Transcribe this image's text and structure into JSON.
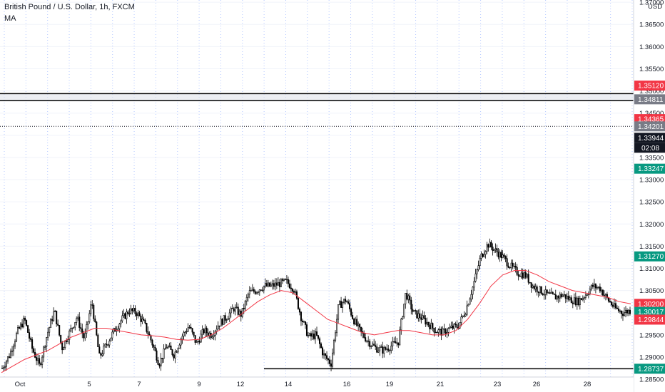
{
  "header": {
    "symbol_line": "British Pound / U.S. Dollar, 1h, FXCM",
    "indicator": "MA"
  },
  "axis": {
    "currency": "USD",
    "countdown": "02:08"
  },
  "colors": {
    "candle": "#000000",
    "ma": "#f23645",
    "grid_vertical": "#2962ff",
    "tag_red": "#f23645",
    "tag_green": "#089981",
    "tag_gray": "#787b86",
    "tag_black": "#131722"
  },
  "chart_data": {
    "type": "candlestick",
    "title": "British Pound / U.S. Dollar, 1h, FXCM",
    "ylim": [
      1.2855,
      1.3705
    ],
    "y_ticks": [
      "1.37000",
      "1.36500",
      "1.36000",
      "1.35500",
      "1.35000",
      "1.34500",
      "1.34000",
      "1.33500",
      "1.33000",
      "1.32500",
      "1.32000",
      "1.31500",
      "1.31000",
      "1.30500",
      "1.30000",
      "1.29500",
      "1.29000",
      "1.28500"
    ],
    "x_ticks": [
      "Oct",
      "5",
      "7",
      "9",
      "12",
      "14",
      "16",
      "19",
      "21",
      "23",
      "26",
      "28"
    ],
    "grid": {
      "vertical": true,
      "vertical_style": "dotted",
      "horizontal": true
    },
    "indicator": "MA",
    "price_tags": [
      {
        "label": "1.35120",
        "value": 1.3512,
        "color": "red"
      },
      {
        "label": "1.34811",
        "value": 1.34811,
        "color": "gray"
      },
      {
        "label": "1.34365",
        "value": 1.34365,
        "color": "red"
      },
      {
        "label": "1.34201",
        "value": 1.34201,
        "color": "gray"
      },
      {
        "label": "1.33944",
        "value": 1.33944,
        "color": "black"
      },
      {
        "label": "1.33247",
        "value": 1.33247,
        "color": "green"
      },
      {
        "label": "1.31270",
        "value": 1.3127,
        "color": "green"
      },
      {
        "label": "1.30200",
        "value": 1.302,
        "color": "red"
      },
      {
        "label": "1.30017",
        "value": 1.30017,
        "color": "green"
      },
      {
        "label": "1.29844",
        "value": 1.29844,
        "color": "red"
      },
      {
        "label": "1.28737",
        "value": 1.28737,
        "color": "green"
      }
    ],
    "drawings": {
      "zone_top": 1.3494,
      "zone_bottom": 1.3478,
      "dotted_level": 1.34201,
      "support_level": 1.28737
    },
    "price_path": [
      1.2875,
      1.2905,
      1.2955,
      1.2985,
      1.292,
      1.288,
      1.295,
      1.3005,
      1.292,
      1.2955,
      1.299,
      1.294,
      1.3025,
      1.29,
      1.293,
      1.296,
      1.2985,
      1.3005,
      1.3,
      1.2975,
      1.2935,
      1.2885,
      1.2925,
      1.2905,
      1.2945,
      1.297,
      1.293,
      1.296,
      1.295,
      1.2975,
      1.299,
      1.301,
      1.2995,
      1.3045,
      1.305,
      1.306,
      1.306,
      1.3065,
      1.307,
      1.3055,
      1.299,
      1.2945,
      1.295,
      1.2905,
      1.2885,
      1.3015,
      1.303,
      1.2985,
      1.2955,
      1.2935,
      1.292,
      1.2915,
      1.2925,
      1.2935,
      1.3045,
      1.3,
      1.299,
      1.2975,
      1.296,
      1.2955,
      1.2965,
      1.297,
      1.3005,
      1.306,
      1.3125,
      1.3155,
      1.314,
      1.3125,
      1.3105,
      1.309,
      1.3085,
      1.306,
      1.305,
      1.304,
      1.3035,
      1.304,
      1.303,
      1.3025,
      1.304,
      1.306,
      1.3055,
      1.303,
      1.301,
      1.3,
      1.3005
    ],
    "ma_path": [
      1.2865,
      1.288,
      1.2895,
      1.2905,
      1.2915,
      1.293,
      1.2945,
      1.2955,
      1.2965,
      1.2965,
      1.296,
      1.2955,
      1.295,
      1.2948,
      1.2945,
      1.294,
      1.2938,
      1.294,
      1.295,
      1.2965,
      1.2985,
      1.3005,
      1.3025,
      1.304,
      1.305,
      1.3045,
      1.3025,
      1.3005,
      1.2985,
      1.2975,
      1.2965,
      1.2955,
      1.295,
      1.2955,
      1.296,
      1.296,
      1.2955,
      1.295,
      1.295,
      1.296,
      1.2985,
      1.302,
      1.306,
      1.3085,
      1.3095,
      1.3095,
      1.3085,
      1.307,
      1.306,
      1.305,
      1.3045,
      1.304,
      1.3035,
      1.3025,
      1.302
    ],
    "current_price": 1.30017
  }
}
